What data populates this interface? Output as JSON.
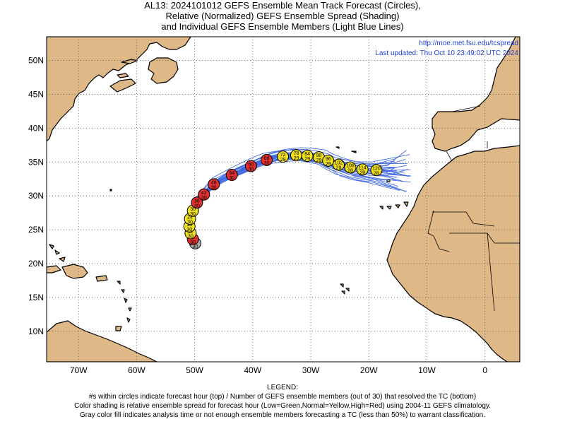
{
  "title": {
    "line1": "AL13: 2024101012 GEFS Ensemble Mean Track Forecast (Circles),",
    "line2": "Relative (Normalized) GEFS Ensemble Spread (Shading)",
    "line3": "and Individual GEFS Ensemble Members (Light Blue Lines)"
  },
  "map_info": {
    "url": "http://moe.met.fsu.edu/tcspread",
    "updated": "Last updated: Thu Oct 10 23:49:02 UTC 2024"
  },
  "axes": {
    "lat_labels": [
      "50N",
      "45N",
      "40N",
      "35N",
      "30N",
      "25N",
      "20N",
      "15N",
      "10N"
    ],
    "lat_values": [
      50,
      45,
      40,
      35,
      30,
      25,
      20,
      15,
      10
    ],
    "lon_labels": [
      "70W",
      "60W",
      "50W",
      "40W",
      "30W",
      "20W",
      "10W",
      "0"
    ],
    "lon_values": [
      -70,
      -60,
      -50,
      -40,
      -30,
      -20,
      -10,
      0
    ],
    "lon_range": [
      -75.5,
      6
    ],
    "lat_range": [
      5.5,
      53.5
    ]
  },
  "colors": {
    "land": "#deb887",
    "ocean": "#ffffff",
    "members": "#4169e1",
    "low_spread": "#33cc33",
    "normal_spread": "#f0e020",
    "high_spread": "#e03030",
    "analysis": "#b0b0b0"
  },
  "track": [
    {
      "hour": "0",
      "members": "30",
      "lon": -49.9,
      "lat": 23.0,
      "spread": "gray"
    },
    {
      "hour": "6",
      "members": "30",
      "lon": -50.3,
      "lat": 23.6,
      "spread": "red"
    },
    {
      "hour": "12",
      "members": "30",
      "lon": -50.7,
      "lat": 24.5,
      "spread": "yellow"
    },
    {
      "hour": "18",
      "members": "30",
      "lon": -50.9,
      "lat": 25.5,
      "spread": "yellow"
    },
    {
      "hour": "24",
      "members": "30",
      "lon": -50.8,
      "lat": 26.6,
      "spread": "yellow"
    },
    {
      "hour": "30",
      "members": "30",
      "lon": -50.3,
      "lat": 27.8,
      "spread": "yellow"
    },
    {
      "hour": "36",
      "members": "30",
      "lon": -49.6,
      "lat": 29.0,
      "spread": "red"
    },
    {
      "hour": "42",
      "members": "30",
      "lon": -48.4,
      "lat": 30.2,
      "spread": "red"
    },
    {
      "hour": "48",
      "members": "30",
      "lon": -46.7,
      "lat": 31.7,
      "spread": "red"
    },
    {
      "hour": "54",
      "members": "30",
      "lon": -43.6,
      "lat": 33.1,
      "spread": "red"
    },
    {
      "hour": "60",
      "members": "30",
      "lon": -40.3,
      "lat": 34.4,
      "spread": "red"
    },
    {
      "hour": "66",
      "members": "30",
      "lon": -37.6,
      "lat": 35.3,
      "spread": "red"
    },
    {
      "hour": "72",
      "members": "29",
      "lon": -34.8,
      "lat": 35.8,
      "spread": "yellow"
    },
    {
      "hour": "78",
      "members": "29",
      "lon": -32.5,
      "lat": 36.0,
      "spread": "yellow"
    },
    {
      "hour": "84",
      "members": "29",
      "lon": -30.6,
      "lat": 35.9,
      "spread": "yellow"
    },
    {
      "hour": "90",
      "members": "29",
      "lon": -28.6,
      "lat": 35.7,
      "spread": "yellow"
    },
    {
      "hour": "96",
      "members": "29",
      "lon": -27.0,
      "lat": 35.2,
      "spread": "yellow"
    },
    {
      "hour": "102",
      "members": "29",
      "lon": -25.2,
      "lat": 34.6,
      "spread": "yellow"
    },
    {
      "hour": "108",
      "members": "28",
      "lon": -23.2,
      "lat": 34.2,
      "spread": "yellow"
    },
    {
      "hour": "114",
      "members": "28",
      "lon": -21.1,
      "lat": 33.9,
      "spread": "yellow"
    },
    {
      "hour": "120",
      "members": "28",
      "lon": -18.7,
      "lat": 33.8,
      "spread": "yellow"
    }
  ],
  "legend": {
    "heading": "LEGEND:",
    "line1": "#s within circles indicate forecast hour (top) / Number of GEFS ensemble members (out of 30) that resolved the TC (bottom)",
    "line2": "Color shading is relative ensemble spread for forecast hour (Low=Green,Normal=Yellow,High=Red) using 2004-11 GEFS climatology.",
    "line3": "Gray color fill indicates analysis time or not enough ensemble members forecasting a TC (less than 50%) to warrant classification."
  }
}
